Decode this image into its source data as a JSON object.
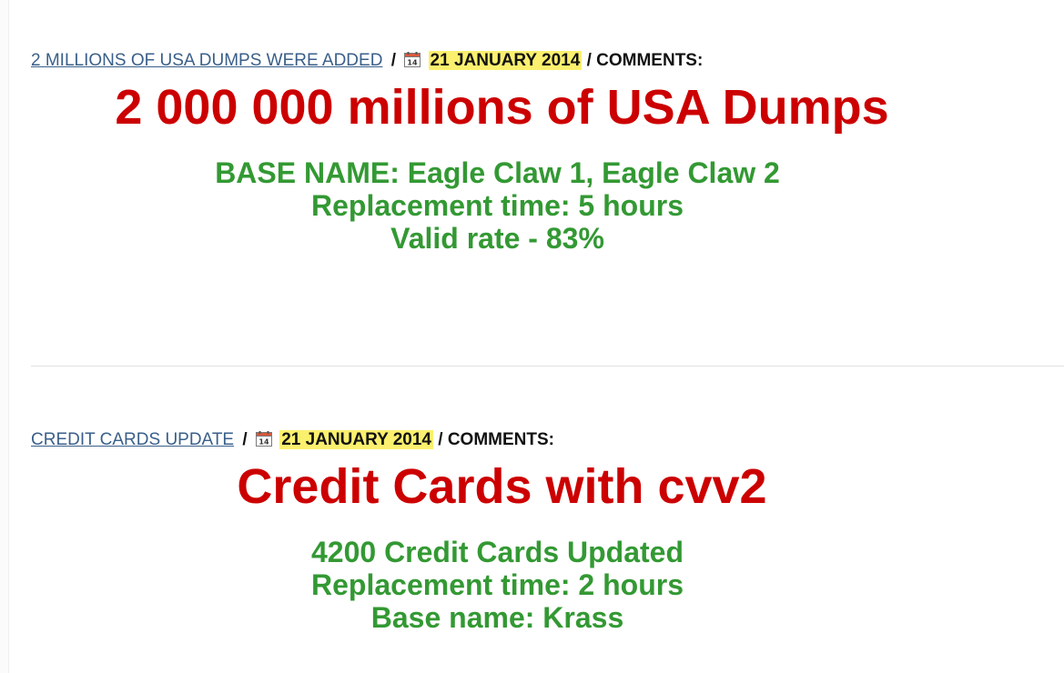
{
  "posts": [
    {
      "title": "2 MILLIONS OF USA DUMPS WERE ADDED",
      "separator": "/",
      "date": "21 JANUARY 2014",
      "comments_label": "/ COMMENTS:",
      "headline": "2 000 000 millions of USA Dumps",
      "details": [
        "BASE NAME: Eagle Claw 1, Eagle Claw 2",
        "Replacement time: 5 hours",
        "Valid rate - 83%"
      ]
    },
    {
      "title": "CREDIT CARDS UPDATE",
      "separator": "/",
      "date": "21 JANUARY 2014",
      "comments_label": "/ COMMENTS:",
      "headline": "Credit Cards with cvv2",
      "details": [
        "4200 Credit Cards Updated",
        "Replacement time: 2 hours",
        "Base name: Krass"
      ]
    }
  ],
  "calendar_icon": {
    "name": "calendar-icon",
    "day": "14"
  },
  "colors": {
    "headline": "#cc0000",
    "details": "#339933",
    "link": "#3a5f8a",
    "date_highlight": "#fbf06e"
  }
}
